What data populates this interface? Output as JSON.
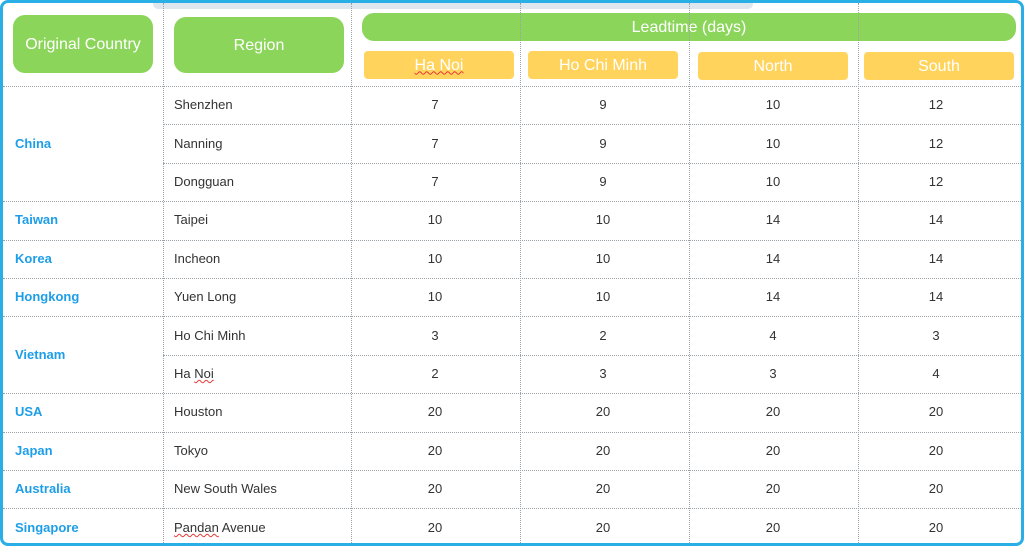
{
  "headers": {
    "original_country": "Original Country",
    "region": "Region",
    "leadtime": "Leadtime (days)",
    "destinations": [
      "Ha Noi",
      "Ho Chi Minh",
      "North",
      "South"
    ]
  },
  "countries": [
    {
      "name": "China",
      "span": [
        0,
        2
      ]
    },
    {
      "name": "Taiwan",
      "span": [
        3,
        3
      ]
    },
    {
      "name": "Korea",
      "span": [
        4,
        4
      ]
    },
    {
      "name": "Hongkong",
      "span": [
        5,
        5
      ]
    },
    {
      "name": "Vietnam",
      "span": [
        6,
        7
      ]
    },
    {
      "name": "USA",
      "span": [
        8,
        8
      ]
    },
    {
      "name": "Japan",
      "span": [
        9,
        9
      ]
    },
    {
      "name": "Australia",
      "span": [
        10,
        10
      ]
    },
    {
      "name": "Singapore",
      "span": [
        11,
        11
      ]
    }
  ],
  "rows": [
    {
      "region": "Shenzhen",
      "values": [
        "7",
        "9",
        "10",
        "12"
      ]
    },
    {
      "region": "Nanning",
      "values": [
        "7",
        "9",
        "10",
        "12"
      ]
    },
    {
      "region": "Dongguan",
      "values": [
        "7",
        "9",
        "10",
        "12"
      ]
    },
    {
      "region": "Taipei",
      "values": [
        "10",
        "10",
        "14",
        "14"
      ]
    },
    {
      "region": "Incheon",
      "values": [
        "10",
        "10",
        "14",
        "14"
      ]
    },
    {
      "region": "Yuen Long",
      "values": [
        "10",
        "10",
        "14",
        "14"
      ]
    },
    {
      "region": "Ho Chi Minh",
      "values": [
        "3",
        "2",
        "4",
        "3"
      ]
    },
    {
      "region": "Ha Noi",
      "values": [
        "2",
        "3",
        "3",
        "4"
      ]
    },
    {
      "region": "Houston",
      "values": [
        "20",
        "20",
        "20",
        "20"
      ]
    },
    {
      "region": "Tokyo",
      "values": [
        "20",
        "20",
        "20",
        "20"
      ]
    },
    {
      "region": "New South Wales",
      "values": [
        "20",
        "20",
        "20",
        "20"
      ]
    },
    {
      "region": "Pandan Avenue",
      "values": [
        "20",
        "20",
        "20",
        "20"
      ]
    }
  ],
  "colors": {
    "border": "#29aee6",
    "header_green": "#8cd55b",
    "header_yellow": "#ffd35c",
    "country_text": "#1d9ee8"
  }
}
